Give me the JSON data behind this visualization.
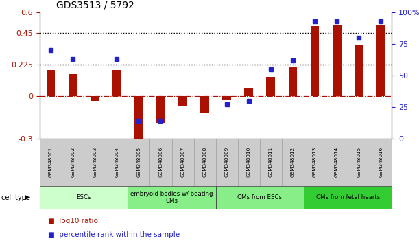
{
  "title": "GDS3513 / 5792",
  "samples": [
    "GSM348001",
    "GSM348002",
    "GSM348003",
    "GSM348004",
    "GSM348005",
    "GSM348006",
    "GSM348007",
    "GSM348008",
    "GSM348009",
    "GSM348010",
    "GSM348011",
    "GSM348012",
    "GSM348013",
    "GSM348014",
    "GSM348015",
    "GSM348016"
  ],
  "log10_ratio": [
    0.19,
    0.16,
    -0.03,
    0.19,
    -0.34,
    -0.19,
    -0.07,
    -0.12,
    -0.02,
    0.06,
    0.14,
    0.21,
    0.5,
    0.51,
    0.37,
    0.51
  ],
  "percentile_rank": [
    70,
    63,
    null,
    63,
    14,
    14,
    null,
    null,
    27,
    30,
    55,
    62,
    93,
    93,
    80,
    93
  ],
  "ylim_left": [
    -0.3,
    0.6
  ],
  "ylim_right": [
    0,
    100
  ],
  "yticks_left": [
    -0.3,
    0,
    0.225,
    0.45,
    0.6
  ],
  "yticks_right": [
    0,
    25,
    50,
    75,
    100
  ],
  "hlines_dotted": [
    0.225,
    0.45
  ],
  "hline_dashed": 0,
  "bar_color": "#aa1100",
  "dot_color": "#2222cc",
  "cell_type_groups": [
    {
      "label": "ESCs",
      "start": 0,
      "end": 3,
      "color": "#ccffcc"
    },
    {
      "label": "embryoid bodies w/ beating\nCMs",
      "start": 4,
      "end": 7,
      "color": "#88ee88"
    },
    {
      "label": "CMs from ESCs",
      "start": 8,
      "end": 11,
      "color": "#88ee88"
    },
    {
      "label": "CMs from fetal hearts",
      "start": 12,
      "end": 15,
      "color": "#33cc33"
    }
  ],
  "legend_bar_label": "log10 ratio",
  "legend_dot_label": "percentile rank within the sample",
  "cell_type_label": "cell type",
  "title_fontsize": 10,
  "tick_label_fontsize": 7,
  "bar_width": 0.4
}
